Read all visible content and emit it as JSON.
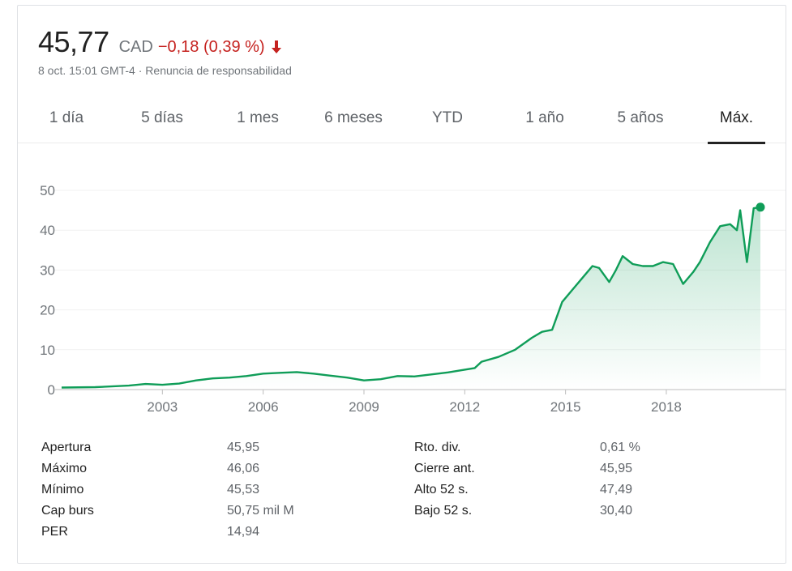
{
  "quote": {
    "price": "45,77",
    "currency": "CAD",
    "change": "−0,18 (0,39 %)",
    "date_time": "8 oct. 15:01 GMT-4",
    "separator": " · ",
    "disclaimer": "Renuncia de responsabilidad",
    "colors": {
      "negative": "#c5221f",
      "line": "#0f9d58"
    }
  },
  "tabs": [
    {
      "label": "1 día",
      "active": false
    },
    {
      "label": "5 días",
      "active": false
    },
    {
      "label": "1 mes",
      "active": false
    },
    {
      "label": "6 meses",
      "active": false
    },
    {
      "label": "YTD",
      "active": false
    },
    {
      "label": "1 año",
      "active": false
    },
    {
      "label": "5 años",
      "active": false
    },
    {
      "label": "Máx.",
      "active": true
    }
  ],
  "chart_data": {
    "type": "area",
    "title": "",
    "xlabel": "",
    "ylabel": "",
    "ylim": [
      0,
      50
    ],
    "xlim": [
      2000.0,
      2020.8
    ],
    "yticks": [
      "0",
      "10",
      "20",
      "30",
      "40",
      "50"
    ],
    "xticks": [
      "2003",
      "2006",
      "2009",
      "2012",
      "2015",
      "2018"
    ],
    "grid": true,
    "series": [
      {
        "x": [
          2000.0,
          2001.0,
          2002.0,
          2002.5,
          2003.0,
          2003.5,
          2004.0,
          2004.5,
          2005.0,
          2005.5,
          2006.0,
          2006.5,
          2007.0,
          2007.5,
          2008.0,
          2008.5,
          2009.0,
          2009.5,
          2010.0,
          2010.5,
          2011.0,
          2011.5,
          2012.0,
          2012.3,
          2012.5,
          2013.0,
          2013.5,
          2014.0,
          2014.3,
          2014.6,
          2014.9,
          2015.2,
          2015.5,
          2015.8,
          2016.0,
          2016.3,
          2016.5,
          2016.7,
          2017.0,
          2017.3,
          2017.6,
          2017.9,
          2018.2,
          2018.5,
          2018.8,
          2019.0,
          2019.3,
          2019.6,
          2019.9,
          2020.1,
          2020.2,
          2020.4,
          2020.6,
          2020.8
        ],
        "y": [
          0.5,
          0.6,
          1.0,
          1.4,
          1.2,
          1.5,
          2.3,
          2.8,
          3.0,
          3.4,
          4.0,
          4.2,
          4.4,
          4.0,
          3.5,
          3.0,
          2.3,
          2.6,
          3.4,
          3.3,
          3.8,
          4.3,
          5.0,
          5.4,
          7.0,
          8.2,
          10.0,
          13.0,
          14.5,
          15.0,
          22.0,
          25.0,
          28.0,
          31.0,
          30.5,
          27.0,
          30.0,
          33.5,
          31.5,
          31.0,
          31.0,
          32.0,
          31.5,
          26.5,
          29.5,
          32.0,
          37.0,
          41.0,
          41.5,
          40.0,
          45.0,
          32.0,
          45.5,
          45.77
        ]
      }
    ]
  },
  "stats": {
    "left": [
      {
        "label": "Apertura",
        "value": "45,95"
      },
      {
        "label": "Máximo",
        "value": "46,06"
      },
      {
        "label": "Mínimo",
        "value": "45,53"
      },
      {
        "label": "Cap burs",
        "value": "50,75 mil M"
      },
      {
        "label": "PER",
        "value": "14,94"
      }
    ],
    "right": [
      {
        "label": "Rto. div.",
        "value": "0,61 %"
      },
      {
        "label": "Cierre ant.",
        "value": "45,95"
      },
      {
        "label": "Alto 52 s.",
        "value": "47,49"
      },
      {
        "label": "Bajo 52 s.",
        "value": "30,40"
      }
    ]
  }
}
